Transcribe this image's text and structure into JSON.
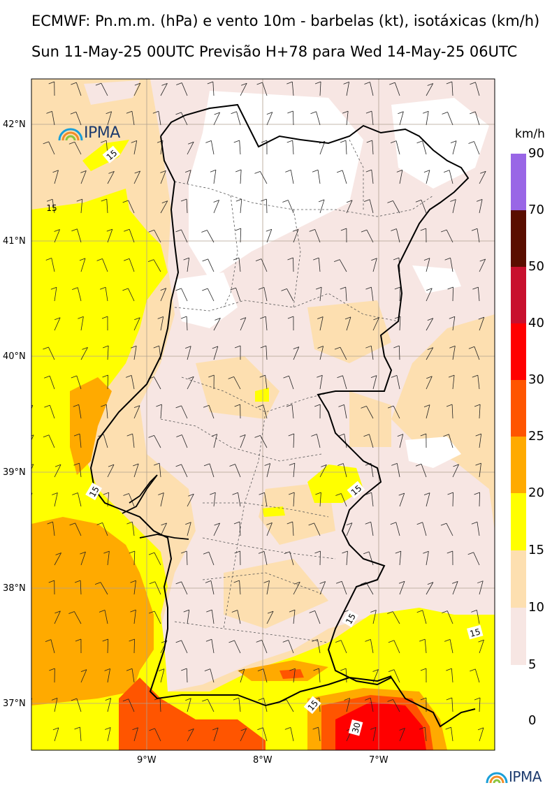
{
  "title_line1": "ECMWF: Pn.m.m. (hPa) e vento 10m - barbelas (kt), isotáxicas (km/h)",
  "title_line2": "Sun 11-May-25 00UTC Previsão H+78 para Wed 14-May-25 06UTC",
  "logo_text": "IPMA",
  "lat_labels": [
    "42°N",
    "41°N",
    "40°N",
    "39°N",
    "38°N",
    "37°N"
  ],
  "lon_labels": [
    "9°W",
    "8°W",
    "7°W"
  ],
  "contour_labels": [
    "15",
    "15",
    "15",
    "15",
    "15",
    "15",
    "15",
    "30"
  ],
  "legend": {
    "unit": "km/h",
    "labels": [
      "90",
      "70",
      "50",
      "40",
      "30",
      "25",
      "20",
      "15",
      "10",
      "5",
      "0"
    ],
    "colors": [
      "#9966e6",
      "#5a0e00",
      "#c8102e",
      "#ff0000",
      "#ff5500",
      "#ffaa00",
      "#ffff00",
      "#fddfb0",
      "#f7e6e3"
    ]
  },
  "field_colors": {
    "c5_10": "#f7e6e3",
    "c10_15": "#fddfb0",
    "c15_20": "#ffff00",
    "c20_25": "#ffaa00",
    "c25_30": "#ff5500",
    "c30_40": "#ff0000"
  }
}
